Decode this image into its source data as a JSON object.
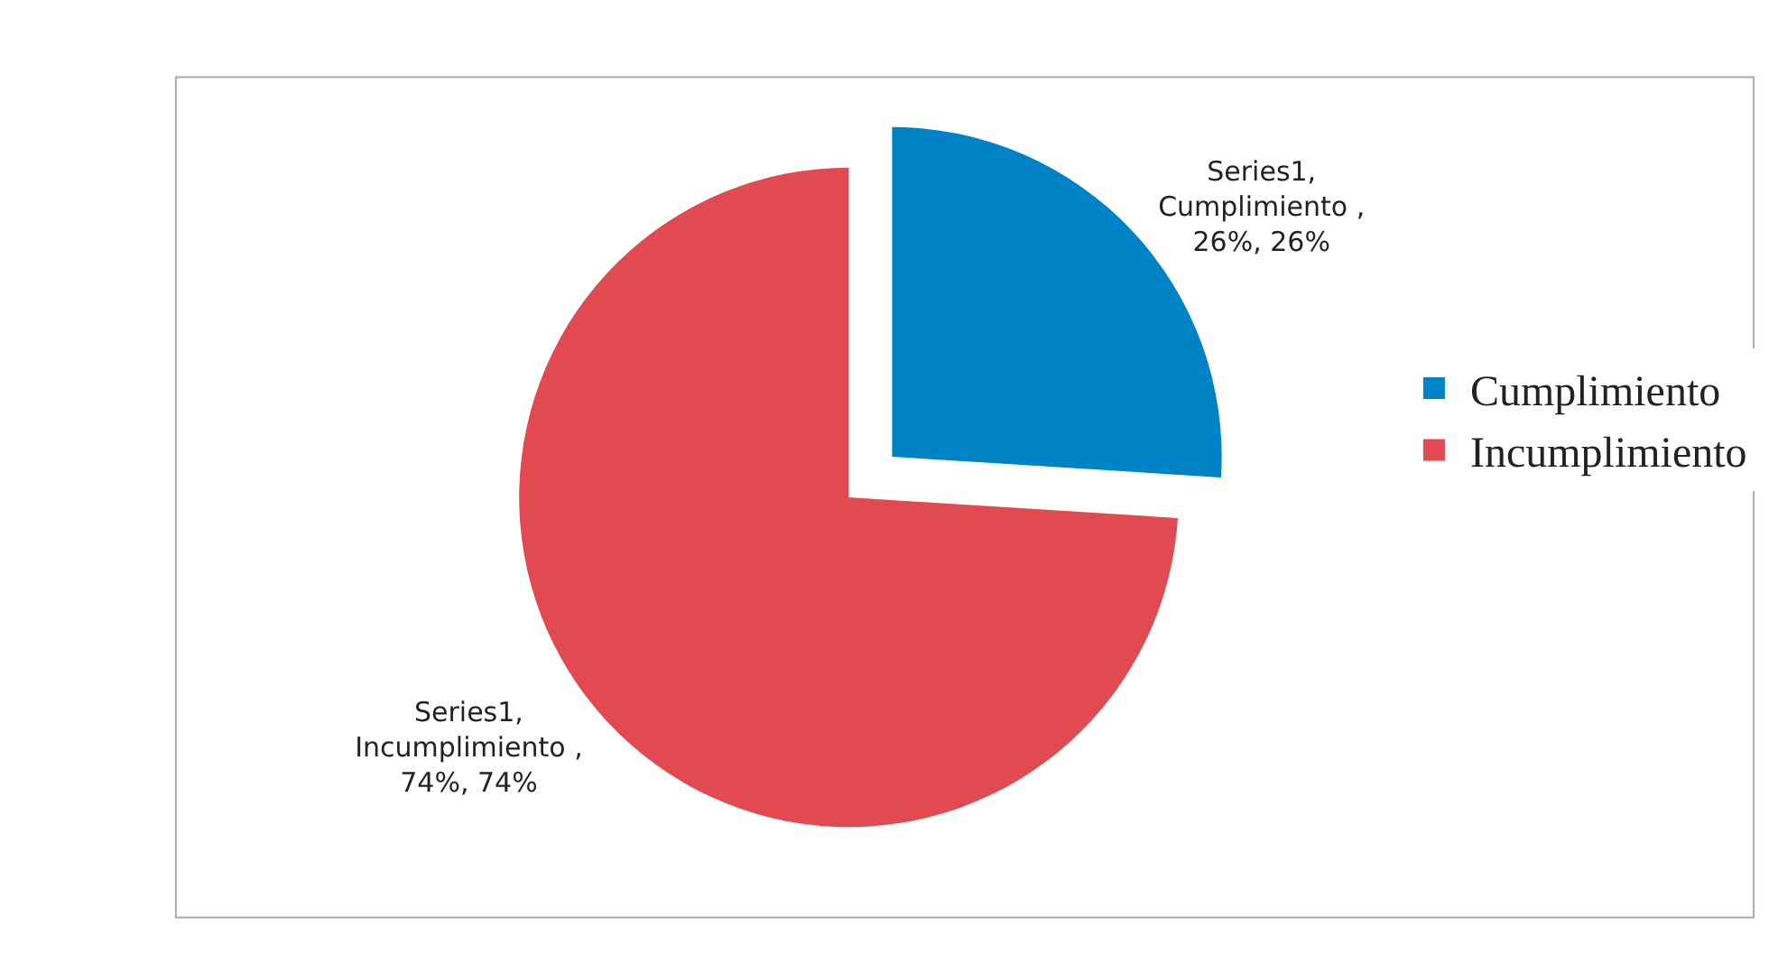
{
  "chart_data": {
    "type": "pie",
    "categories": [
      "Cumplimiento",
      "Incumplimiento"
    ],
    "values": [
      26,
      74
    ],
    "colors": [
      "#0083c6",
      "#e24a52"
    ],
    "value_labels": [
      "Series1,\nCumplimiento ,\n26%, 26%",
      "Series1,\nIncumplimiento ,\n74%, 74%"
    ],
    "legend": "right"
  }
}
